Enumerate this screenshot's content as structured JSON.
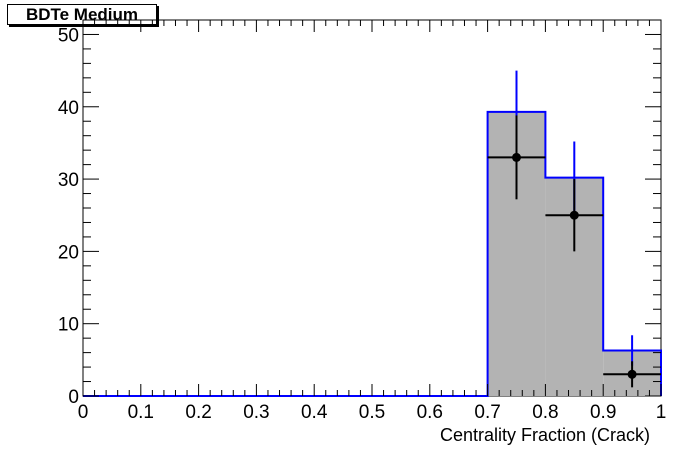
{
  "chart_data": {
    "type": "bar",
    "title": "BDTe Medium",
    "xlabel": "Centrality Fraction (Crack)",
    "ylabel": "",
    "xlim": [
      0,
      1
    ],
    "ylim": [
      0,
      52
    ],
    "x_ticks": [
      "0",
      "0.1",
      "0.2",
      "0.3",
      "0.4",
      "0.5",
      "0.6",
      "0.7",
      "0.8",
      "0.9",
      "1"
    ],
    "y_ticks": [
      "0",
      "10",
      "20",
      "30",
      "40",
      "50"
    ],
    "bin_edges": [
      0,
      0.1,
      0.2,
      0.3,
      0.4,
      0.5,
      0.6,
      0.7,
      0.8,
      0.9,
      1.0
    ],
    "series": [
      {
        "style": "filled-histogram",
        "values": [
          0,
          0,
          0,
          0,
          0,
          0,
          0,
          39.3,
          30.2,
          6.3
        ],
        "uncertainty": [
          0,
          0,
          0,
          0,
          0,
          0,
          0,
          5.7,
          5.0,
          2.1
        ]
      },
      {
        "style": "points-with-errors",
        "x": [
          0.75,
          0.85,
          0.95
        ],
        "y": [
          33,
          25,
          3
        ],
        "yerr": [
          5.8,
          5.0,
          1.8
        ],
        "xerr": [
          0.05,
          0.05,
          0.05
        ]
      }
    ],
    "colors": {
      "fill": "#b3b3b3",
      "line": "#0000ff",
      "points": "#000000"
    },
    "grid": false,
    "legend": "none"
  }
}
